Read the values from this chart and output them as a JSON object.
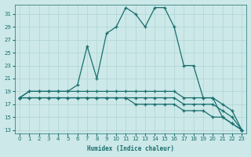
{
  "xlabel": "Humidex (Indice chaleur)",
  "bg_color": "#cce8e8",
  "line_color": "#1a6e6e",
  "grid_color": "#b0d4d4",
  "xlim": [
    -0.5,
    23.5
  ],
  "ylim": [
    12.5,
    32.5
  ],
  "yticks": [
    13,
    15,
    17,
    19,
    21,
    23,
    25,
    27,
    29,
    31
  ],
  "xticks": [
    0,
    1,
    2,
    3,
    4,
    5,
    6,
    7,
    8,
    9,
    10,
    11,
    12,
    13,
    14,
    15,
    16,
    17,
    18,
    19,
    20,
    21,
    22,
    23
  ],
  "curve_main_x": [
    0,
    1,
    2,
    3,
    4,
    5,
    6,
    7,
    8,
    9,
    10,
    11,
    12,
    13,
    14,
    15,
    16,
    17,
    18,
    19,
    20,
    21,
    22,
    23
  ],
  "curve_main_y": [
    18,
    19,
    19,
    19,
    19,
    19,
    20,
    26,
    21,
    28,
    29,
    32,
    31,
    29,
    32,
    32,
    29,
    23,
    23,
    18,
    18,
    15,
    14,
    13
  ],
  "curve_upper_x": [
    0,
    1,
    2,
    3,
    4,
    5,
    6,
    7,
    8,
    9,
    10,
    11,
    12,
    13,
    14,
    15,
    16,
    17,
    18,
    19,
    20,
    21,
    22,
    23
  ],
  "curve_upper_y": [
    18,
    19,
    19,
    19,
    19,
    19,
    19,
    19,
    19,
    19,
    19,
    19,
    19,
    19,
    19,
    19,
    19,
    18,
    18,
    18,
    18,
    17,
    16,
    13
  ],
  "curve_mid_x": [
    0,
    1,
    2,
    3,
    4,
    5,
    6,
    7,
    8,
    9,
    10,
    11,
    12,
    13,
    14,
    15,
    16,
    17,
    18,
    19,
    20,
    21,
    22,
    23
  ],
  "curve_mid_y": [
    18,
    18,
    18,
    18,
    18,
    18,
    18,
    18,
    18,
    18,
    18,
    18,
    18,
    18,
    18,
    18,
    18,
    17,
    17,
    17,
    17,
    16,
    15,
    13
  ],
  "curve_lower_x": [
    0,
    1,
    2,
    3,
    4,
    5,
    6,
    7,
    8,
    9,
    10,
    11,
    12,
    13,
    14,
    15,
    16,
    17,
    18,
    19,
    20,
    21,
    22,
    23
  ],
  "curve_lower_y": [
    18,
    18,
    18,
    18,
    18,
    18,
    18,
    18,
    18,
    18,
    18,
    18,
    17,
    17,
    17,
    17,
    17,
    16,
    16,
    16,
    15,
    15,
    14,
    13
  ]
}
